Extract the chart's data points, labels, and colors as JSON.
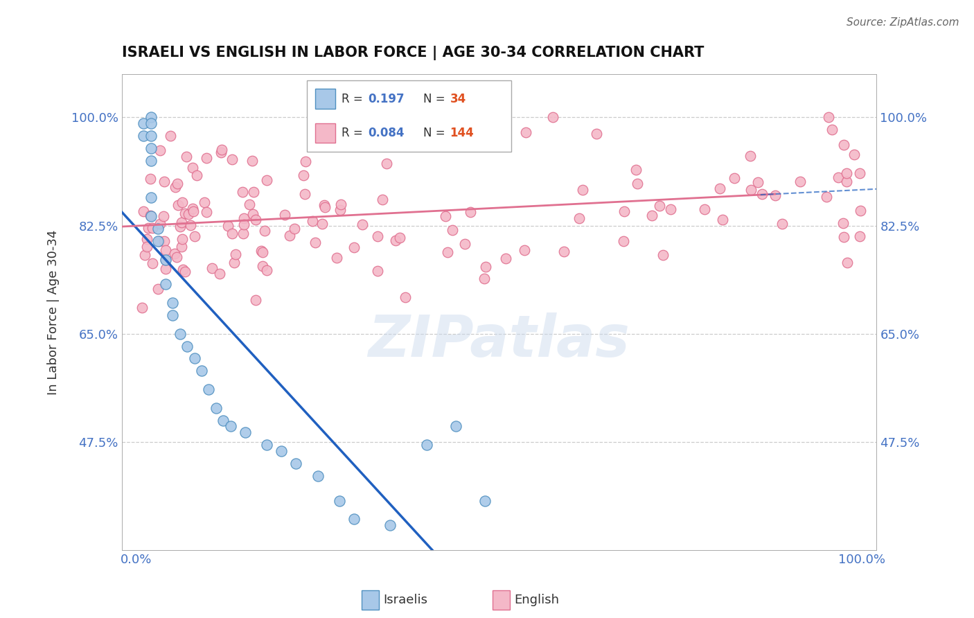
{
  "title": "ISRAELI VS ENGLISH IN LABOR FORCE | AGE 30-34 CORRELATION CHART",
  "source_text": "Source: ZipAtlas.com",
  "ylabel": "In Labor Force | Age 30-34",
  "ylim": [
    0.3,
    1.07
  ],
  "xlim": [
    -0.02,
    1.02
  ],
  "yticks": [
    0.475,
    0.65,
    0.825,
    1.0
  ],
  "r_israeli": "0.197",
  "n_israeli": "34",
  "r_english": "0.084",
  "n_english": "144",
  "blue_color": "#a8c8e8",
  "pink_color": "#f4b8c8",
  "trend_blue": "#2060c0",
  "trend_pink": "#e07090",
  "watermark": "ZIPatlas",
  "background_color": "#ffffff",
  "tick_color": "#4472c4",
  "label_color": "#333333"
}
